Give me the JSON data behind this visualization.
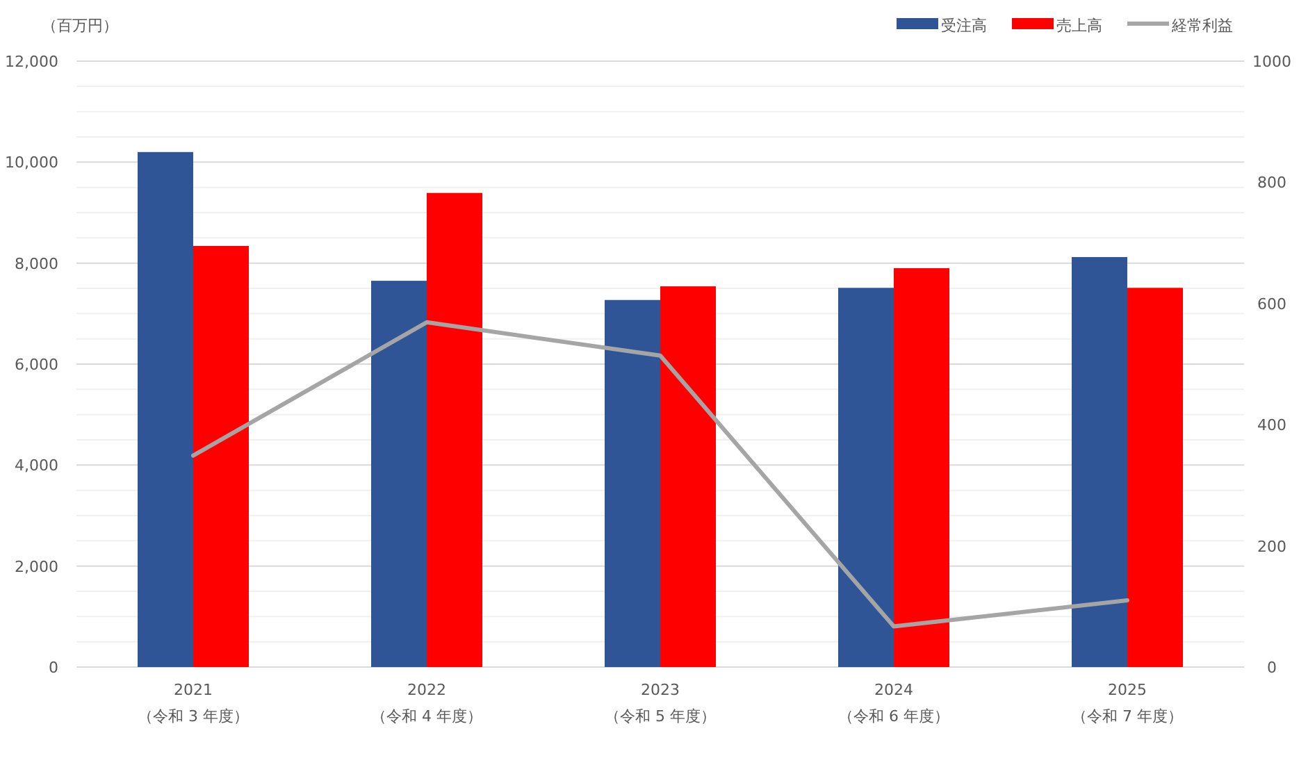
{
  "chart_data": {
    "type": "bar",
    "ylabel": "（百万円）",
    "categories": [
      "2021\n（令和 3 年度）",
      "2022\n（令和 4 年度）",
      "2023\n（令和 5 年度）",
      "2024\n（令和 6 年度）",
      "2025\n（令和 7 年度）"
    ],
    "series": [
      {
        "name": "受注高",
        "color": "#2f5597",
        "values": [
          10200,
          7650,
          7270,
          7510,
          8120
        ]
      },
      {
        "name": "売上高",
        "color": "#ff0000",
        "values": [
          8340,
          9390,
          7540,
          7900,
          7510
        ]
      },
      {
        "name": "経常利益",
        "type": "line",
        "axis": "y2",
        "color": "#a5a5a5",
        "values": [
          349,
          569,
          514,
          67,
          110
        ]
      }
    ],
    "ylim": [
      0,
      12000
    ],
    "yticks": [
      0,
      {
        "value": 500,
        "label": null
      },
      {
        "value": 1000,
        "label": null
      },
      {
        "value": 1500,
        "label": null
      },
      {
        "value": 2000,
        "label": "2,000"
      },
      {
        "value": 2500,
        "label": null
      },
      {
        "value": 3000,
        "label": null
      },
      {
        "value": 3500,
        "label": null
      },
      {
        "value": 4000,
        "label": "4,000"
      },
      {
        "value": 4500,
        "label": null
      },
      {
        "value": 5000,
        "label": null
      },
      {
        "value": 5500,
        "label": null
      },
      {
        "value": 6000,
        "label": "6,000"
      },
      {
        "value": 6500,
        "label": null
      },
      {
        "value": 7000,
        "label": null
      },
      {
        "value": 7500,
        "label": null
      },
      {
        "value": 8000,
        "label": "8,000"
      },
      {
        "value": 8500,
        "label": null
      },
      {
        "value": 9000,
        "label": null
      },
      {
        "value": 9500,
        "label": null
      },
      {
        "value": 10000,
        "label": "10,000"
      },
      {
        "value": 10500,
        "label": null
      },
      {
        "value": 11000,
        "label": null
      },
      {
        "value": 11500,
        "label": null
      },
      {
        "value": 12000,
        "label": "12,000"
      }
    ],
    "y2lim": [
      0,
      1000
    ],
    "y2ticks": [
      0,
      200,
      400,
      600,
      800,
      1000
    ],
    "grid": "y",
    "legend": "top right",
    "marker": "none"
  }
}
